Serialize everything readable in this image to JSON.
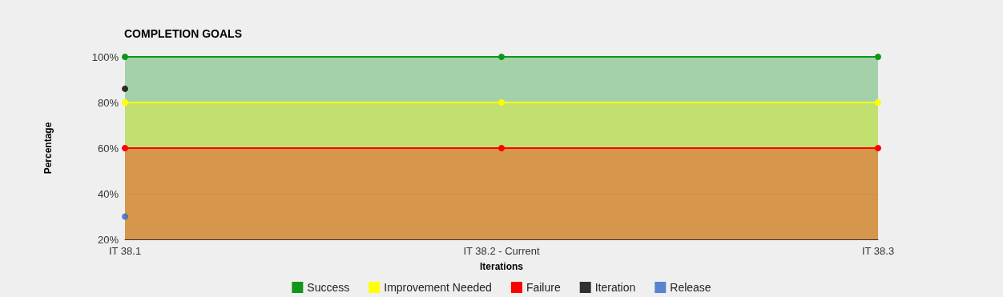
{
  "chart_data": {
    "type": "area",
    "title": "COMPLETION GOALS",
    "xlabel": "Iterations",
    "ylabel": "Percentage",
    "categories": [
      "IT 38.1",
      "IT 38.2 - Current",
      "IT 38.3"
    ],
    "series": [
      {
        "name": "Success",
        "color": "#109618",
        "values": [
          100,
          100,
          100
        ]
      },
      {
        "name": "Improvement Needed",
        "color": "#ffff00",
        "values": [
          80,
          80,
          80
        ]
      },
      {
        "name": "Failure",
        "color": "#ff0000",
        "values": [
          60,
          60,
          60
        ]
      },
      {
        "name": "Iteration",
        "color": "#000000",
        "type": "scatter",
        "values": [
          86,
          null,
          null
        ]
      },
      {
        "name": "Release",
        "color": "#3366cc",
        "type": "scatter",
        "values": [
          30,
          null,
          null
        ]
      }
    ],
    "ylim": [
      20,
      100
    ],
    "yticks": [
      {
        "value": 20,
        "label": "20%"
      },
      {
        "value": 40,
        "label": "40%"
      },
      {
        "value": 60,
        "label": "60%"
      },
      {
        "value": 80,
        "label": "80%"
      },
      {
        "value": 100,
        "label": "100%"
      }
    ],
    "grid": "y",
    "legend": "bottom",
    "marker": "circle"
  }
}
